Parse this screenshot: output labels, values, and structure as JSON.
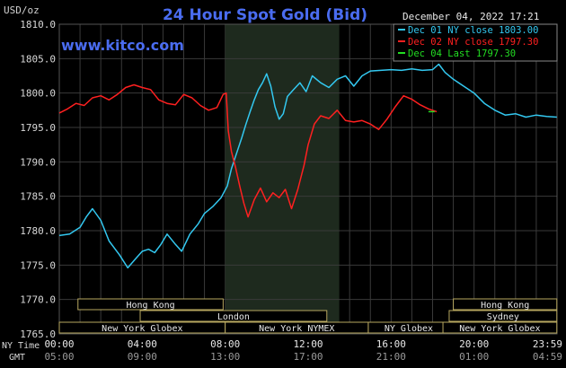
{
  "header": {
    "unit": "USD/oz",
    "title": "24 Hour Spot Gold (Bid)",
    "timestamp": "December 04, 2022 17:21",
    "watermark": "www.kitco.com"
  },
  "legend": [
    {
      "label": "Dec 01 NY close 1803.00",
      "color": "#33c8f0"
    },
    {
      "label": "Dec 02 NY close 1797.30",
      "color": "#ff2020"
    },
    {
      "label": "Dec 04 Last 1797.30",
      "color": "#22dd22"
    }
  ],
  "time_rows": {
    "ny_label": "NY Time",
    "gmt_label": "GMT",
    "ny_ticks": [
      "00:00",
      "04:00",
      "08:00",
      "12:00",
      "16:00",
      "20:00",
      "23:59"
    ],
    "gmt_ticks": [
      "05:00",
      "09:00",
      "13:00",
      "17:00",
      "21:00",
      "01:00",
      "04:59"
    ]
  },
  "sessions": [
    {
      "label": "Hong Kong",
      "start": 0.9,
      "end": 7.9
    },
    {
      "label": "London",
      "start": 3.9,
      "end": 12.9
    },
    {
      "label": "New York Globex",
      "start": 0.0,
      "end": 8.0
    },
    {
      "label": "New York NYMEX",
      "start": 8.0,
      "end": 14.9
    },
    {
      "label": "NY Globex",
      "start": 14.9,
      "end": 18.8
    },
    {
      "label": "Hong Kong",
      "start": 19.0,
      "end": 23.99
    },
    {
      "label": "Sydney",
      "start": 18.8,
      "end": 23.99
    },
    {
      "label": "New York Globex",
      "start": 18.5,
      "end": 23.99
    }
  ],
  "chart_data": {
    "type": "line",
    "title": "24 Hour Spot Gold (Bid)",
    "ylabel": "USD/oz",
    "xlabel": "NY Time",
    "xlim": [
      0,
      24
    ],
    "ylim": [
      1765,
      1810
    ],
    "yticks": [
      1765,
      1770,
      1775,
      1780,
      1785,
      1790,
      1795,
      1800,
      1805,
      1810
    ],
    "ytick_labels": [
      "1765.0",
      "1770.0",
      "1775.0",
      "1780.0",
      "1785.0",
      "1790.0",
      "1795.0",
      "1800.0",
      "1805.0",
      "1810.0"
    ],
    "grid": true,
    "legend_position": "top-right",
    "shaded_region_hours": [
      8.0,
      13.5
    ],
    "series": [
      {
        "name": "Dec 01 NY close 1803.00",
        "color": "#33c8f0",
        "x": [
          0.0,
          0.5,
          1.0,
          1.3,
          1.6,
          2.0,
          2.4,
          2.9,
          3.3,
          3.7,
          4.0,
          4.3,
          4.6,
          4.9,
          5.2,
          5.6,
          5.9,
          6.3,
          6.7,
          7.0,
          7.4,
          7.8,
          8.1,
          8.3,
          8.5,
          8.8,
          9.0,
          9.2,
          9.4,
          9.6,
          9.8,
          10.0,
          10.2,
          10.4,
          10.6,
          10.8,
          11.0,
          11.3,
          11.6,
          11.9,
          12.2,
          12.6,
          13.0,
          13.4,
          13.8,
          14.2,
          14.6,
          15.0,
          15.5,
          16.0,
          16.5,
          17.0,
          17.5,
          18.0,
          18.3,
          18.6,
          19.0,
          19.5,
          20.0,
          20.5,
          21.0,
          21.5,
          22.0,
          22.5,
          23.0,
          23.5,
          23.99
        ],
        "y": [
          1779.3,
          1779.5,
          1780.5,
          1782.0,
          1783.2,
          1781.5,
          1778.5,
          1776.5,
          1774.6,
          1776.0,
          1777.0,
          1777.3,
          1776.8,
          1778.0,
          1779.5,
          1778.0,
          1777.0,
          1779.5,
          1781.0,
          1782.5,
          1783.5,
          1784.8,
          1786.5,
          1789.0,
          1790.8,
          1793.5,
          1795.5,
          1797.3,
          1799.0,
          1800.5,
          1801.5,
          1802.8,
          1801.0,
          1798.0,
          1796.2,
          1797.0,
          1799.5,
          1800.5,
          1801.5,
          1800.2,
          1802.5,
          1801.5,
          1800.8,
          1802.0,
          1802.5,
          1801.0,
          1802.5,
          1803.2,
          1803.3,
          1803.4,
          1803.3,
          1803.5,
          1803.3,
          1803.4,
          1804.2,
          1803.0,
          1802.0,
          1801.0,
          1800.0,
          1798.5,
          1797.5,
          1796.8,
          1797.0,
          1796.5,
          1796.8,
          1796.6,
          1796.5
        ]
      },
      {
        "name": "Dec 02 NY close 1797.30",
        "color": "#ff2020",
        "x": [
          0.0,
          0.4,
          0.8,
          1.2,
          1.6,
          2.0,
          2.4,
          2.8,
          3.2,
          3.6,
          4.0,
          4.4,
          4.8,
          5.2,
          5.6,
          6.0,
          6.4,
          6.8,
          7.2,
          7.6,
          7.9,
          8.05,
          8.15,
          8.3,
          8.5,
          8.7,
          8.9,
          9.1,
          9.4,
          9.7,
          10.0,
          10.3,
          10.6,
          10.9,
          11.2,
          11.5,
          11.8,
          12.0,
          12.3,
          12.6,
          13.0,
          13.4,
          13.8,
          14.2,
          14.6,
          15.0,
          15.4,
          15.8,
          16.2,
          16.6,
          17.0,
          17.4,
          17.8,
          18.2
        ],
        "y": [
          1797.1,
          1797.7,
          1798.5,
          1798.2,
          1799.3,
          1799.6,
          1799.0,
          1799.8,
          1800.8,
          1801.2,
          1800.8,
          1800.5,
          1799.0,
          1798.5,
          1798.3,
          1799.8,
          1799.3,
          1798.2,
          1797.5,
          1797.9,
          1799.8,
          1800.0,
          1794.5,
          1791.5,
          1789.2,
          1786.5,
          1784.0,
          1782.0,
          1784.5,
          1786.2,
          1784.2,
          1785.5,
          1784.8,
          1786.0,
          1783.2,
          1786.0,
          1789.5,
          1792.5,
          1795.5,
          1796.7,
          1796.3,
          1797.5,
          1796.0,
          1795.8,
          1796.0,
          1795.5,
          1794.7,
          1796.2,
          1798.0,
          1799.6,
          1799.1,
          1798.3,
          1797.7,
          1797.3
        ]
      },
      {
        "name": "Dec 04 Last 1797.30",
        "color": "#22dd22",
        "x": [
          17.8,
          18.1
        ],
        "y": [
          1797.3,
          1797.3
        ]
      }
    ]
  }
}
